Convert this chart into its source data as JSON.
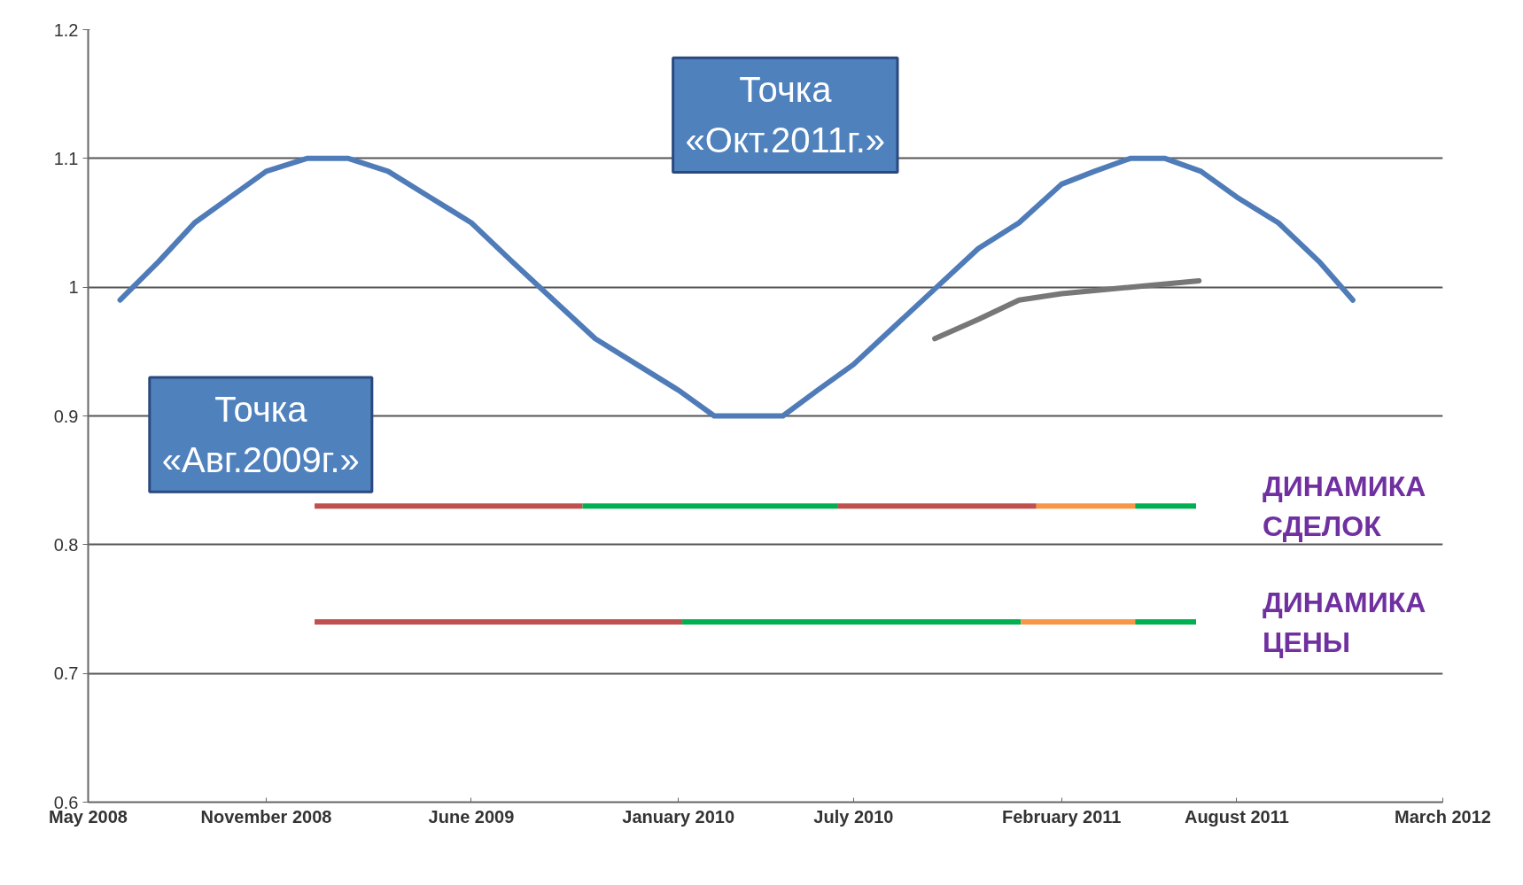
{
  "chart_data": {
    "type": "line",
    "xlim": [
      "2008-05-15",
      "2012-03-15"
    ],
    "ylim": [
      0.6,
      1.2
    ],
    "xticks": [
      {
        "value": "2008-05-15",
        "label": "May 2008"
      },
      {
        "value": "2008-11-15",
        "label": "November 2008"
      },
      {
        "value": "2009-06-15",
        "label": "June 2009"
      },
      {
        "value": "2010-01-15",
        "label": "January 2010"
      },
      {
        "value": "2010-07-15",
        "label": "July 2010"
      },
      {
        "value": "2011-02-15",
        "label": "February 2011"
      },
      {
        "value": "2011-08-15",
        "label": "August 2011"
      },
      {
        "value": "2012-03-15",
        "label": "March 2012"
      }
    ],
    "yticks": [
      {
        "value": 0.6,
        "label": "0.6"
      },
      {
        "value": 0.7,
        "label": "0.7"
      },
      {
        "value": 0.8,
        "label": "0.8"
      },
      {
        "value": 0.9,
        "label": "0.9"
      },
      1,
      {
        "value": 1.1,
        "label": "1.1"
      },
      {
        "value": 1.2,
        "label": "1.2"
      }
    ],
    "grid": "y",
    "series": [
      {
        "color": "#4f7cb8",
        "x": [
          "2008-06-17",
          "2008-07-27",
          "2008-09-02",
          "2008-10-09",
          "2008-11-15",
          "2008-12-27",
          "2009-01-18",
          "2009-02-08",
          "2009-03-21",
          "2009-05-03",
          "2009-06-15",
          "2009-07-27",
          "2009-09-08",
          "2009-10-21",
          "2009-12-03",
          "2010-01-15",
          "2010-02-21",
          "2010-03-27",
          "2010-05-03",
          "2010-06-08",
          "2010-07-15",
          "2010-08-27",
          "2010-10-09",
          "2010-11-21",
          "2011-01-02",
          "2011-02-15",
          "2011-03-21",
          "2011-04-27",
          "2011-05-15",
          "2011-06-02",
          "2011-07-09",
          "2011-08-15",
          "2011-09-27",
          "2011-11-08",
          "2011-12-13"
        ],
        "values": [
          0.99,
          1.02,
          1.05,
          1.07,
          1.09,
          1.1,
          1.1,
          1.1,
          1.09,
          1.07,
          1.05,
          1.02,
          0.99,
          0.96,
          0.94,
          0.92,
          0.9,
          0.9,
          0.9,
          0.92,
          0.94,
          0.97,
          1.0,
          1.03,
          1.05,
          1.08,
          1.09,
          1.1,
          1.1,
          1.1,
          1.09,
          1.07,
          1.05,
          1.02,
          0.99
        ]
      },
      {
        "color": "#777777",
        "x": [
          "2010-10-07",
          "2010-11-21",
          "2011-01-02",
          "2011-02-15",
          "2011-04-27",
          "2011-07-07"
        ],
        "values": [
          0.96,
          0.975,
          0.99,
          0.995,
          1.0,
          1.005
        ]
      },
      {
        "color": "#c0504d",
        "x": [
          "2009-01-04",
          "2009-10-08"
        ],
        "values": [
          0.83,
          0.83
        ]
      },
      {
        "color": "#00b050",
        "x": [
          "2009-10-08",
          "2010-06-29"
        ],
        "values": [
          0.83,
          0.83
        ]
      },
      {
        "color": "#c0504d",
        "x": [
          "2010-06-29",
          "2011-01-20"
        ],
        "values": [
          0.83,
          0.83
        ]
      },
      {
        "color": "#f79646",
        "x": [
          "2011-01-20",
          "2011-05-02"
        ],
        "values": [
          0.83,
          0.83
        ]
      },
      {
        "name": "ДИНАМИКА\nСДЕЛОК",
        "color": "#00b050",
        "x": [
          "2011-05-02",
          "2011-07-04"
        ],
        "values": [
          0.83,
          0.83
        ]
      },
      {
        "color": "#c0504d",
        "x": [
          "2009-01-04",
          "2010-01-19"
        ],
        "values": [
          0.74,
          0.74
        ]
      },
      {
        "color": "#00b050",
        "x": [
          "2010-01-19",
          "2011-01-04"
        ],
        "values": [
          0.74,
          0.74
        ]
      },
      {
        "color": "#f79646",
        "x": [
          "2011-01-04",
          "2011-05-02"
        ],
        "values": [
          0.74,
          0.74
        ]
      },
      {
        "name": "ДИНАМИКА\nЦЕНЫ",
        "color": "#00b050",
        "x": [
          "2011-05-02",
          "2011-07-04"
        ],
        "values": [
          0.74,
          0.74
        ]
      }
    ],
    "annotations": [
      "Точка\n«Авг.2009г.»",
      "Точка\n«Окт.2011г.»"
    ]
  }
}
